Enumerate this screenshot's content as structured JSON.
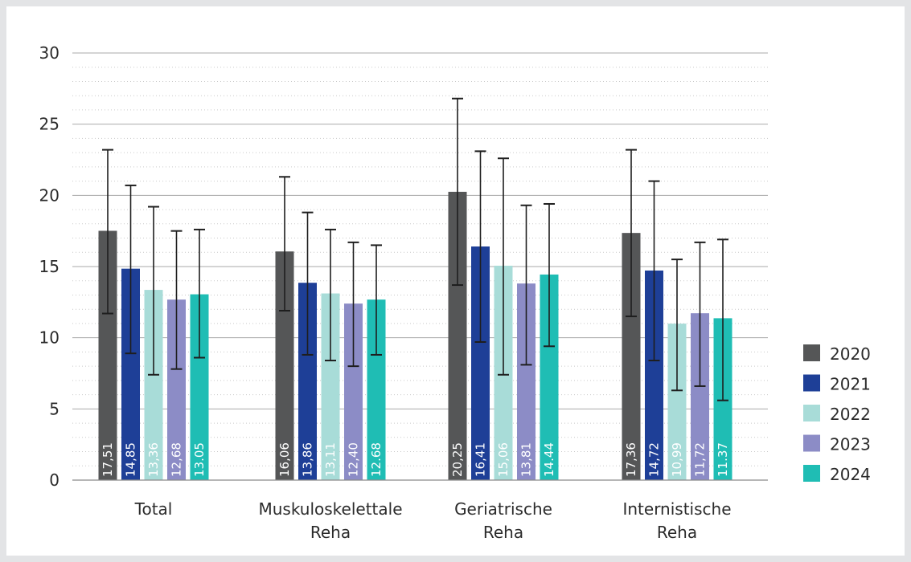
{
  "chart_data": {
    "type": "bar",
    "categories": [
      [
        "Total"
      ],
      [
        "Muskuloskelettale",
        "Reha"
      ],
      [
        "Geriatrische",
        "Reha"
      ],
      [
        "Internistische",
        "Reha"
      ]
    ],
    "series": [
      {
        "name": "2020",
        "color": "#555657",
        "values": [
          17.51,
          16.06,
          20.25,
          17.36
        ],
        "labels": [
          "17,51",
          "16,06",
          "20,25",
          "17,36"
        ],
        "error_low": [
          11.7,
          11.9,
          13.7,
          11.5
        ],
        "error_high": [
          23.2,
          21.3,
          26.8,
          23.2
        ]
      },
      {
        "name": "2021",
        "color": "#1e3f97",
        "values": [
          14.85,
          13.86,
          16.41,
          14.72
        ],
        "labels": [
          "14,85",
          "13,86",
          "16,41",
          "14,72"
        ],
        "error_low": [
          8.9,
          8.8,
          9.7,
          8.4
        ],
        "error_high": [
          20.7,
          18.8,
          23.1,
          21.0
        ]
      },
      {
        "name": "2022",
        "color": "#a8dcd8",
        "values": [
          13.36,
          13.11,
          15.06,
          10.99
        ],
        "labels": [
          "13,36",
          "13,11",
          "15,06",
          "10,99"
        ],
        "error_low": [
          7.4,
          8.4,
          7.4,
          6.3
        ],
        "error_high": [
          19.2,
          17.6,
          22.6,
          15.5
        ]
      },
      {
        "name": "2023",
        "color": "#8c8cc6",
        "values": [
          12.68,
          12.4,
          13.81,
          11.72
        ],
        "labels": [
          "12,68",
          "12,40",
          "13,81",
          "11,72"
        ],
        "error_low": [
          7.8,
          8.0,
          8.1,
          6.6
        ],
        "error_high": [
          17.5,
          16.7,
          19.3,
          16.7
        ]
      },
      {
        "name": "2024",
        "color": "#1fbdb4",
        "values": [
          13.05,
          12.68,
          14.44,
          11.37
        ],
        "labels": [
          "13.05",
          "12.68",
          "14.44",
          "11.37"
        ],
        "error_low": [
          8.6,
          8.8,
          9.4,
          5.6
        ],
        "error_high": [
          17.6,
          16.5,
          19.4,
          16.9
        ]
      }
    ],
    "title": "",
    "xlabel": "",
    "ylabel": "",
    "ylim": [
      0,
      30
    ],
    "yticks": [
      0,
      5,
      10,
      15,
      20,
      25,
      30
    ],
    "grid": true,
    "legend_position": "right"
  }
}
